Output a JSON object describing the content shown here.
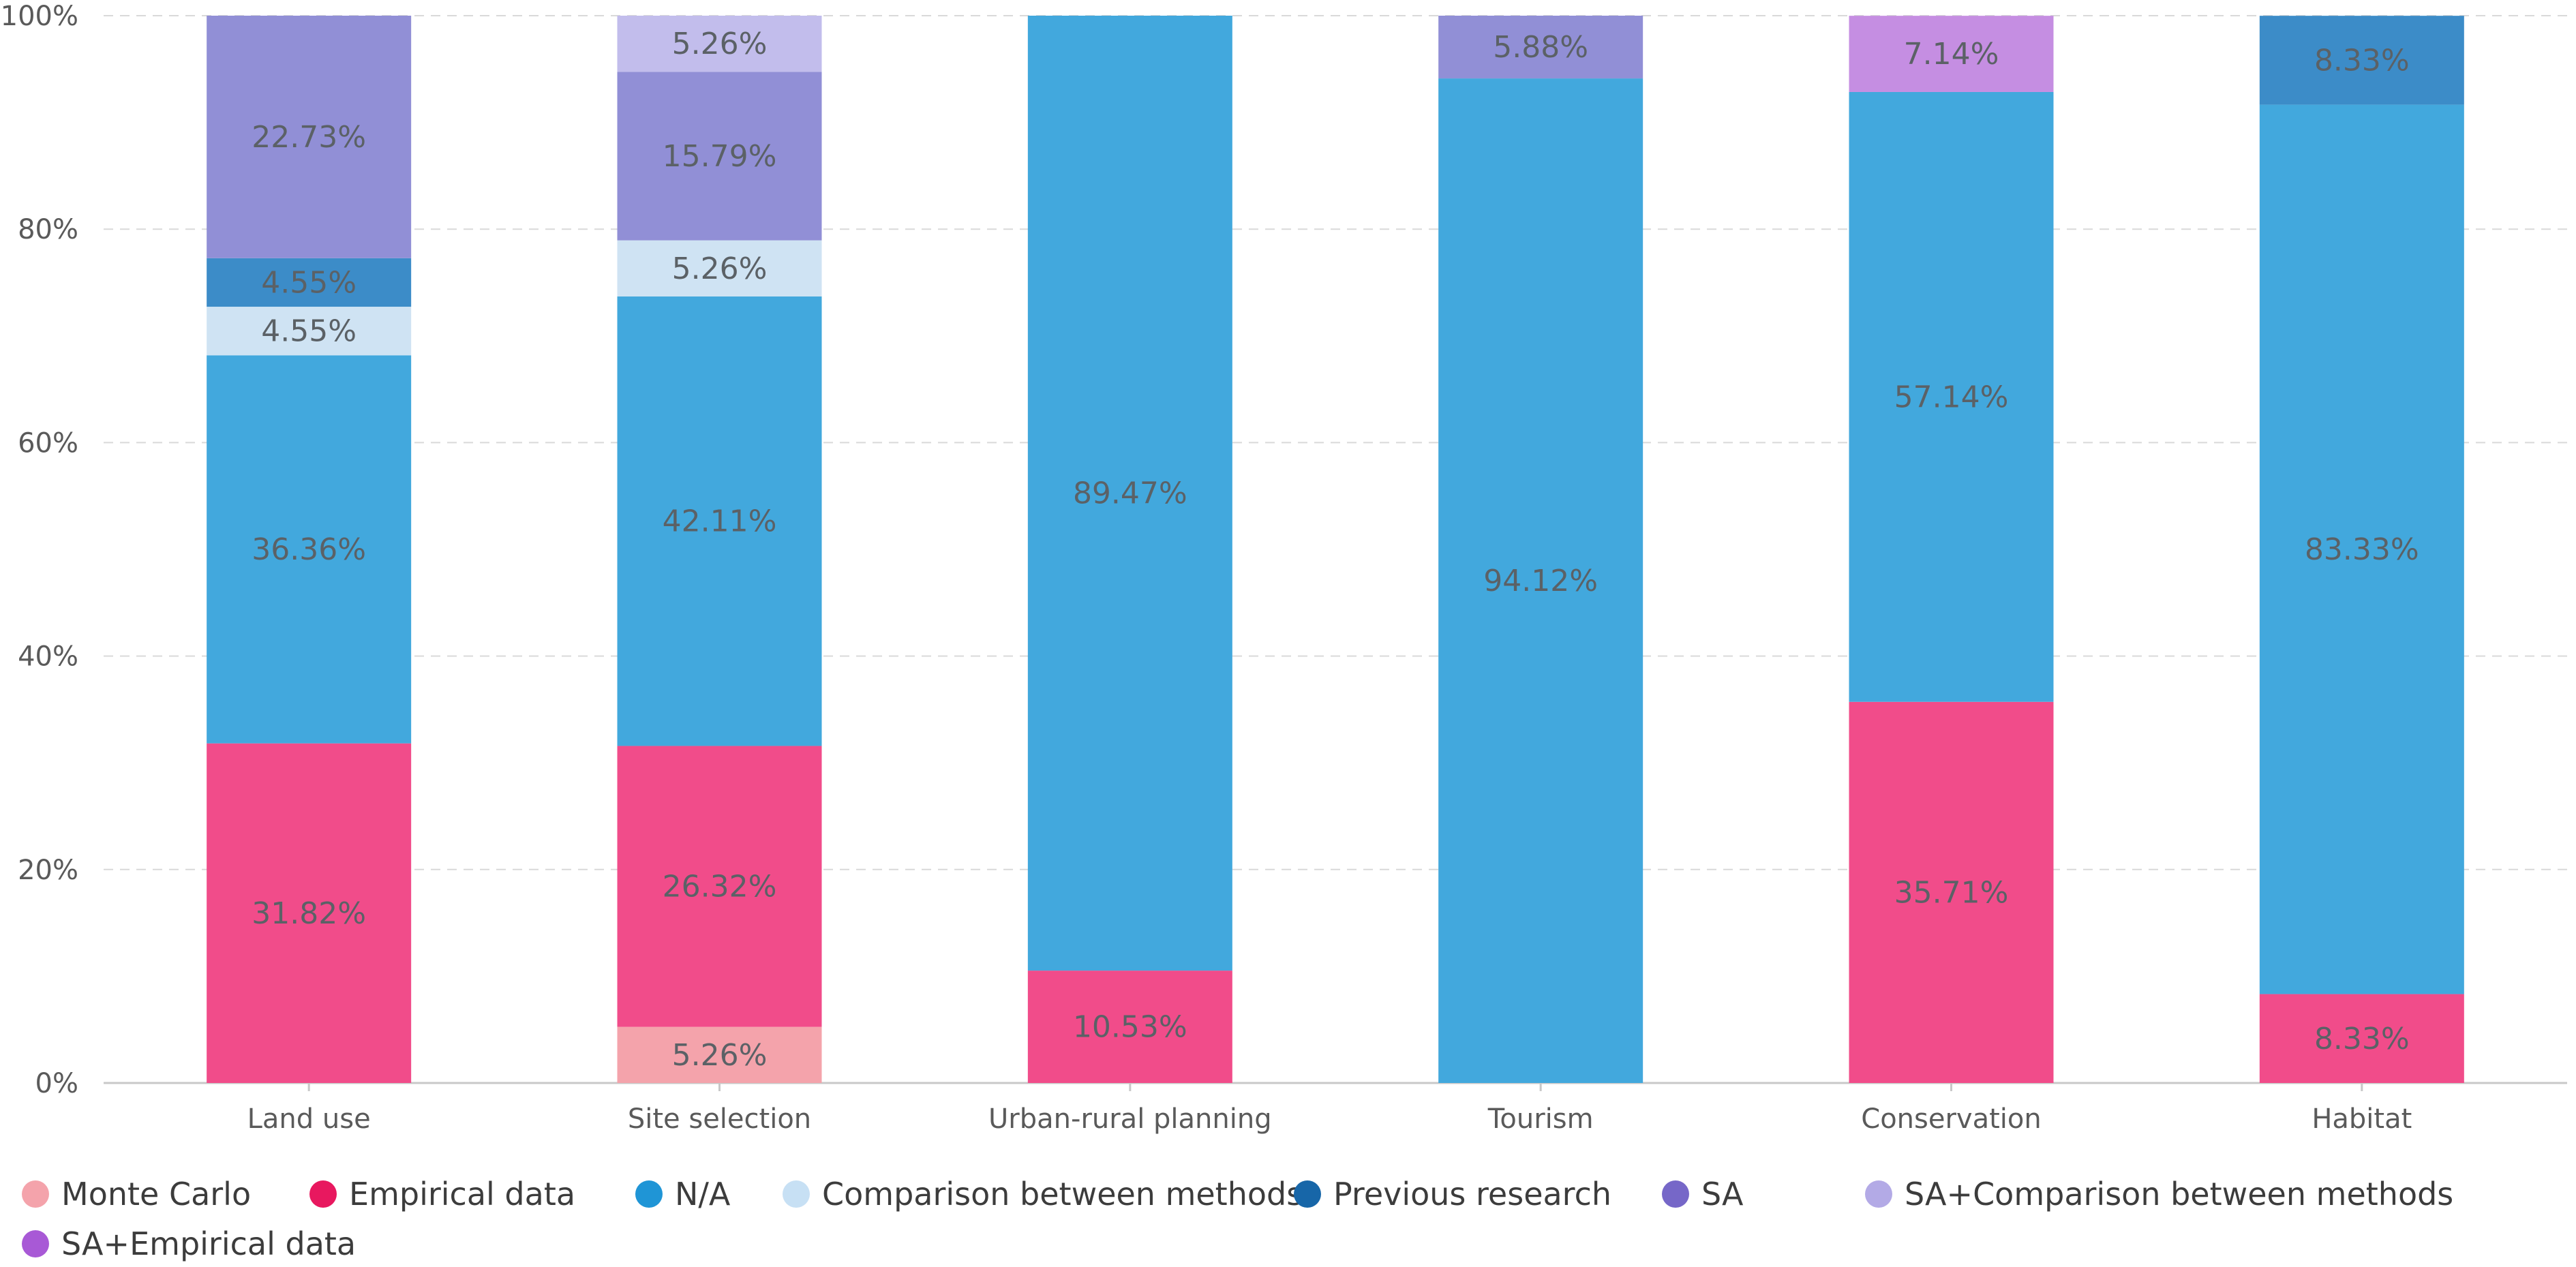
{
  "chart_data": {
    "type": "bar",
    "stacked": true,
    "title": "",
    "xlabel": "",
    "ylabel": "",
    "ylim": [
      0,
      100
    ],
    "yticks": [
      "0%",
      "20%",
      "40%",
      "60%",
      "80%",
      "100%"
    ],
    "ytick_values": [
      0,
      20,
      40,
      60,
      80,
      100
    ],
    "grid": true,
    "legend_position": "bottom",
    "categories": [
      "Land use",
      "Site selection",
      "Urban-rural planning",
      "Tourism",
      "Conservation",
      "Habitat"
    ],
    "series": [
      {
        "name": "Monte Carlo",
        "color": "#f4a3ab",
        "values": [
          null,
          5.26,
          null,
          null,
          null,
          null
        ],
        "labels": [
          "",
          "5.26%",
          "",
          "",
          "",
          ""
        ]
      },
      {
        "name": "Empirical data",
        "color": "#f14c8a",
        "values": [
          31.82,
          26.32,
          10.53,
          null,
          35.71,
          8.33
        ],
        "labels": [
          "31.82%",
          "26.32%",
          "10.53%",
          "",
          "35.71%",
          "8.33%"
        ]
      },
      {
        "name": "N/A",
        "color": "#42a8dd",
        "values": [
          36.36,
          42.11,
          89.47,
          94.12,
          57.14,
          83.33
        ],
        "labels": [
          "36.36%",
          "42.11%",
          "89.47%",
          "94.12%",
          "57.14%",
          "83.33%"
        ]
      },
      {
        "name": "Comparison between methods",
        "color": "#cfe3f3",
        "values": [
          4.55,
          5.26,
          null,
          null,
          null,
          null
        ],
        "labels": [
          "4.55%",
          "5.26%",
          "",
          "",
          "",
          ""
        ]
      },
      {
        "name": "Previous research",
        "color": "#3c8cc8",
        "values": [
          4.55,
          null,
          null,
          null,
          null,
          8.33
        ],
        "labels": [
          "4.55%",
          "",
          "",
          "",
          "",
          "8.33%"
        ]
      },
      {
        "name": "SA",
        "color": "#918fd6",
        "values": [
          22.73,
          15.79,
          null,
          5.88,
          null,
          null
        ],
        "labels": [
          "22.73%",
          "15.79%",
          "",
          "5.88%",
          "",
          ""
        ]
      },
      {
        "name": "SA+Comparison between methods",
        "color": "#c2bdec",
        "values": [
          null,
          5.26,
          null,
          null,
          null,
          null
        ],
        "labels": [
          "",
          "5.26%",
          "",
          "",
          "",
          ""
        ]
      },
      {
        "name": "SA+Empirical data",
        "color": "#c58ee2",
        "values": [
          null,
          null,
          null,
          null,
          7.14,
          null
        ],
        "labels": [
          "",
          "",
          "",
          "",
          "7.14%",
          ""
        ]
      }
    ],
    "legend": [
      {
        "name": "Monte Carlo",
        "marker_color": "#f4a3ab"
      },
      {
        "name": "Empirical data",
        "marker_color": "#e8185f"
      },
      {
        "name": "N/A",
        "marker_color": "#1f95d6"
      },
      {
        "name": "Comparison between methods",
        "marker_color": "#c7e0f4"
      },
      {
        "name": "Previous research",
        "marker_color": "#1766a8"
      },
      {
        "name": "SA",
        "marker_color": "#7667c8"
      },
      {
        "name": "SA+Comparison between methods",
        "marker_color": "#b3aae6"
      },
      {
        "name": "SA+Empirical data",
        "marker_color": "#a859d6"
      }
    ]
  }
}
